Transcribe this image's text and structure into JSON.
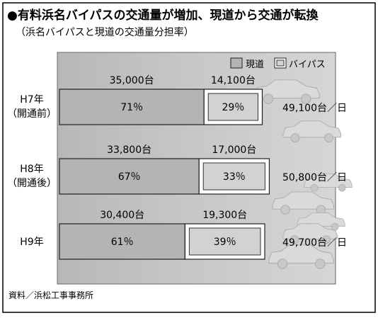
{
  "header": {
    "title": "●有料浜名バイパスの交通量が増加、現道から交通が転換",
    "subtitle": "（浜名バイパスと現道の交通量分担率）"
  },
  "legend": {
    "items": [
      {
        "label": "現道",
        "color": "#c4c4c4"
      },
      {
        "label": "バイパス",
        "color": "#cfcfcf"
      }
    ]
  },
  "footer": {
    "source": "資料／浜松工事事務所"
  },
  "chart_data": {
    "type": "bar",
    "orientation": "horizontal",
    "stacked": true,
    "categories": [
      {
        "line1": "H7年",
        "line2": "（開通前）"
      },
      {
        "line1": "H8年",
        "line2": "（開通後）"
      },
      {
        "line1": "H9年",
        "line2": ""
      }
    ],
    "series": [
      {
        "name": "現道",
        "values": [
          35000,
          33800,
          30400
        ],
        "value_labels": [
          "35,000台",
          "33,800台",
          "30,400台"
        ],
        "shares": [
          "71％",
          "67％",
          "61％"
        ],
        "fill": "#c4c4c4"
      },
      {
        "name": "バイパス",
        "values": [
          14100,
          17000,
          19300
        ],
        "value_labels": [
          "14,100台",
          "17,000台",
          "19,300台"
        ],
        "shares": [
          "29％",
          "33％",
          "39％"
        ],
        "fill": "#cfcfcf"
      }
    ],
    "totals": [
      49100,
      50800,
      49700
    ],
    "total_labels": [
      "49,100台／日",
      "50,800台／日",
      "49,700台／日"
    ],
    "grid": false,
    "legend_position": "top-right"
  }
}
